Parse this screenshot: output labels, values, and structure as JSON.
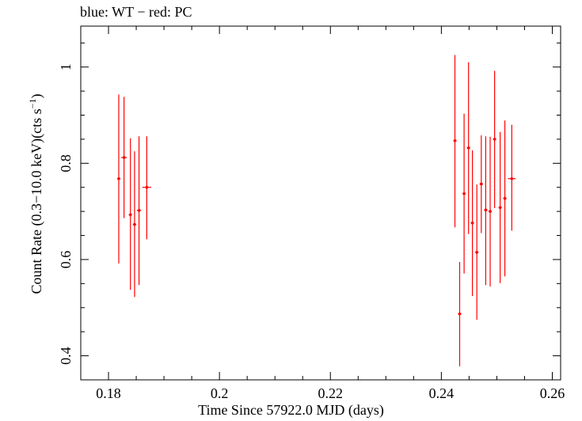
{
  "chart_data": {
    "type": "scatter",
    "title": "blue: WT − red: PC",
    "xlabel": "Time Since 57922.0 MJD (days)",
    "ylabel_main": "Count Rate (0.3−10.0 keV)(cts s",
    "ylabel_sup": "−1",
    "ylabel_tail": ")",
    "xlim": [
      0.175,
      0.2615
    ],
    "ylim": [
      0.35,
      1.085
    ],
    "xticks": [
      0.18,
      0.2,
      0.22,
      0.24,
      0.26
    ],
    "xtick_labels": [
      "0.18",
      "0.2",
      "0.22",
      "0.24",
      "0.26"
    ],
    "yticks": [
      0.4,
      0.6,
      0.8,
      1.0
    ],
    "ytick_labels": [
      "0.4",
      "0.6",
      "0.8",
      "1"
    ],
    "grid": false,
    "series": [
      {
        "name": "PC",
        "color": "#ff0000",
        "points": [
          {
            "x": 0.18185,
            "xerr": 0.0003,
            "y": 0.768,
            "ylo": 0.592,
            "yhi": 0.943
          },
          {
            "x": 0.1828,
            "xerr": 0.0005,
            "y": 0.812,
            "ylo": 0.686,
            "yhi": 0.938
          },
          {
            "x": 0.18395,
            "xerr": 0.0003,
            "y": 0.693,
            "ylo": 0.537,
            "yhi": 0.852
          },
          {
            "x": 0.1847,
            "xerr": 0.0003,
            "y": 0.673,
            "ylo": 0.522,
            "yhi": 0.825
          },
          {
            "x": 0.1855,
            "xerr": 0.0004,
            "y": 0.702,
            "ylo": 0.547,
            "yhi": 0.856
          },
          {
            "x": 0.1869,
            "xerr": 0.0008,
            "y": 0.75,
            "ylo": 0.642,
            "yhi": 0.856
          },
          {
            "x": 0.24245,
            "xerr": 0.0003,
            "y": 0.847,
            "ylo": 0.667,
            "yhi": 1.025
          },
          {
            "x": 0.2433,
            "xerr": 0.0003,
            "y": 0.487,
            "ylo": 0.378,
            "yhi": 0.595
          },
          {
            "x": 0.2441,
            "xerr": 0.0003,
            "y": 0.737,
            "ylo": 0.571,
            "yhi": 0.903
          },
          {
            "x": 0.2449,
            "xerr": 0.0003,
            "y": 0.832,
            "ylo": 0.653,
            "yhi": 1.01
          },
          {
            "x": 0.2456,
            "xerr": 0.0003,
            "y": 0.676,
            "ylo": 0.524,
            "yhi": 0.827
          },
          {
            "x": 0.2464,
            "xerr": 0.0003,
            "y": 0.615,
            "ylo": 0.475,
            "yhi": 0.756
          },
          {
            "x": 0.2472,
            "xerr": 0.0003,
            "y": 0.757,
            "ylo": 0.655,
            "yhi": 0.858
          },
          {
            "x": 0.248,
            "xerr": 0.0003,
            "y": 0.703,
            "ylo": 0.547,
            "yhi": 0.856
          },
          {
            "x": 0.2488,
            "xerr": 0.0003,
            "y": 0.7,
            "ylo": 0.544,
            "yhi": 0.855
          },
          {
            "x": 0.2496,
            "xerr": 0.0003,
            "y": 0.85,
            "ylo": 0.707,
            "yhi": 0.992
          },
          {
            "x": 0.2506,
            "xerr": 0.0003,
            "y": 0.708,
            "ylo": 0.551,
            "yhi": 0.865
          },
          {
            "x": 0.25145,
            "xerr": 0.0003,
            "y": 0.727,
            "ylo": 0.565,
            "yhi": 0.889
          },
          {
            "x": 0.2527,
            "xerr": 0.0007,
            "y": 0.768,
            "ylo": 0.66,
            "yhi": 0.88
          }
        ]
      }
    ]
  }
}
